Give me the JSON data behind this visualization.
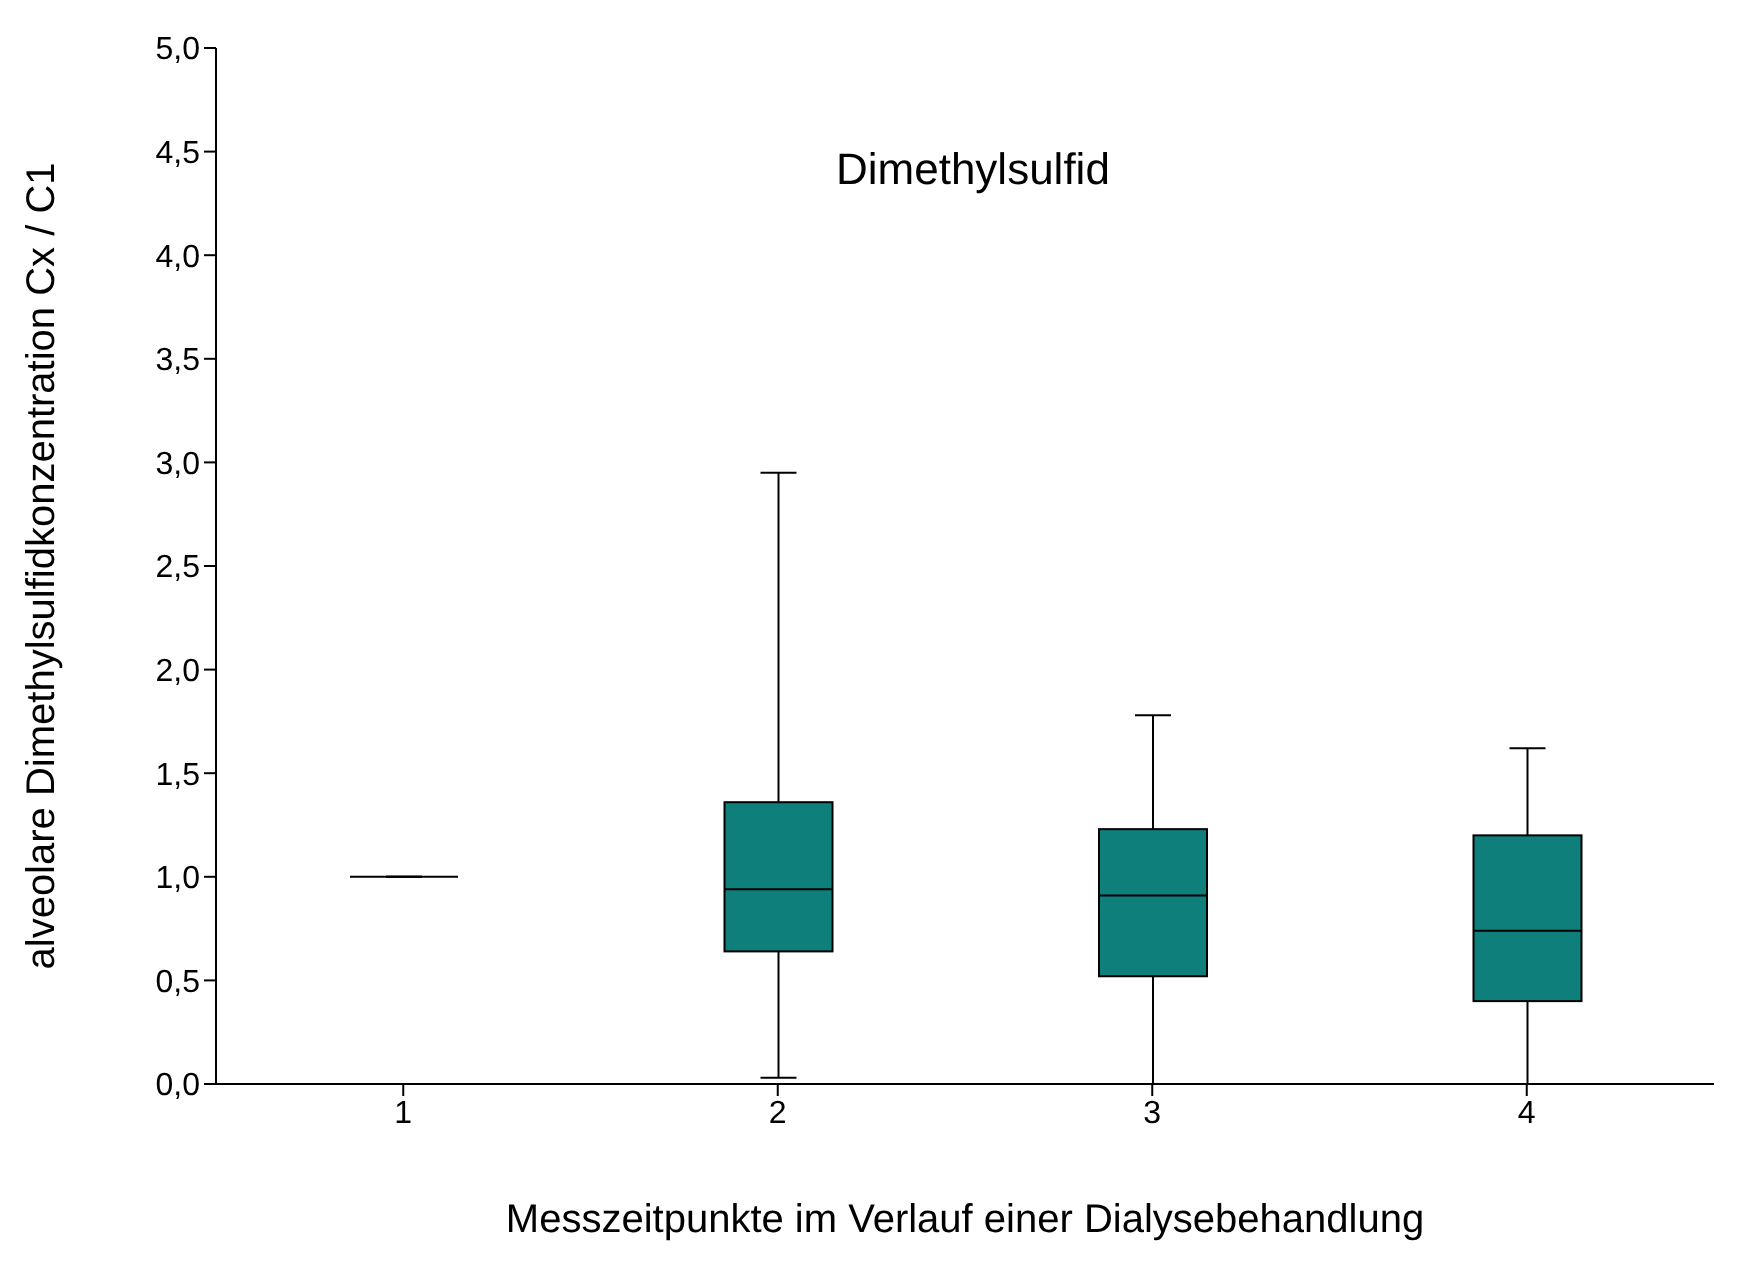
{
  "chart_data": {
    "type": "box",
    "title": "Dimethylsulfid",
    "xlabel": "Messzeitpunkte im Verlauf einer Dialysebehandlung",
    "ylabel": "alveolare Dimethylsulfidkonzentration Cx / C1",
    "categories": [
      "1",
      "2",
      "3",
      "4"
    ],
    "colors": [
      "#000000",
      "#0f7f7c",
      "#0f7f7c",
      "#0f7f7c"
    ],
    "boxes": [
      {
        "low": 1.0,
        "q1": 1.0,
        "median": 1.0,
        "q3": 1.0,
        "high": 1.0
      },
      {
        "low": 0.03,
        "q1": 0.64,
        "median": 0.94,
        "q3": 1.36,
        "high": 2.95
      },
      {
        "low": 0.0,
        "q1": 0.52,
        "median": 0.91,
        "q3": 1.23,
        "high": 1.78
      },
      {
        "low": 0.0,
        "q1": 0.4,
        "median": 0.74,
        "q3": 1.2,
        "high": 1.62
      }
    ],
    "ylim": [
      0,
      5
    ],
    "yticks": [
      {
        "value": 0,
        "label": "0,0"
      },
      {
        "value": 0.5,
        "label": "0,5"
      },
      {
        "value": 1,
        "label": "1,0"
      },
      {
        "value": 1.5,
        "label": "1,5"
      },
      {
        "value": 2,
        "label": "2,0"
      },
      {
        "value": 2.5,
        "label": "2,5"
      },
      {
        "value": 3,
        "label": "3,0"
      },
      {
        "value": 3.5,
        "label": "3,5"
      },
      {
        "value": 4,
        "label": "4,0"
      },
      {
        "value": 4.5,
        "label": "4,5"
      },
      {
        "value": 5,
        "label": "5,0"
      }
    ],
    "grid": false,
    "legend": false
  }
}
